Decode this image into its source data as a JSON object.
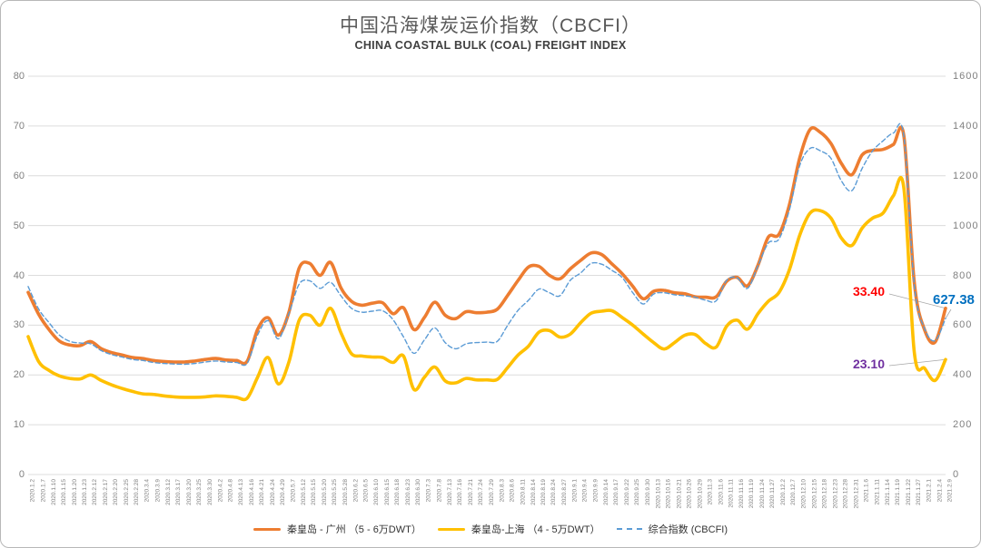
{
  "title": "中国沿海煤炭运价指数（CBCFI）",
  "subtitle": "CHINA COASTAL BULK (COAL) FREIGHT INDEX",
  "annotations": {
    "qg_last": "33.40",
    "qs_last": "23.10",
    "cbcfi_last": "627.38",
    "qg_color": "#FF0000",
    "qs_color": "#7030A0",
    "cbcfi_color": "#0070C0"
  },
  "colors": {
    "qg_line": "#ED7D31",
    "qs_line": "#FFC000",
    "cbcfi_line": "#5B9BD5",
    "grid": "#DCDCDC",
    "tick_text": "#7F7F7F",
    "leader": "#A6A6A6"
  },
  "chart_data": {
    "type": "line",
    "title": "中国沿海煤炭运价指数（CBCFI）",
    "subtitle": "CHINA COASTAL BULK (COAL) FREIGHT INDEX",
    "grid": "horizontal-only",
    "legend_position": "bottom",
    "left_axis": {
      "min": 0,
      "max": 80,
      "step": 10
    },
    "right_axis": {
      "min": 0,
      "max": 1600,
      "step": 200
    },
    "x": [
      "2020.1.2",
      "2020.1.7",
      "2020.1.10",
      "2020.1.15",
      "2020.1.20",
      "2020.1.23",
      "2020.2.12",
      "2020.2.17",
      "2020.2.20",
      "2020.2.25",
      "2020.2.28",
      "2020.3.4",
      "2020.3.9",
      "2020.3.12",
      "2020.3.17",
      "2020.3.20",
      "2020.3.25",
      "2020.3.30",
      "2020.4.2",
      "2020.4.8",
      "2020.4.13",
      "2020.4.16",
      "2020.4.21",
      "2020.4.24",
      "2020.4.29",
      "2020.5.7",
      "2020.5.12",
      "2020.5.15",
      "2020.5.20",
      "2020.5.25",
      "2020.5.28",
      "2020.6.2",
      "2020.6.5",
      "2020.6.10",
      "2020.6.15",
      "2020.6.18",
      "2020.6.23",
      "2020.6.30",
      "2020.7.3",
      "2020.7.8",
      "2020.7.13",
      "2020.7.16",
      "2020.7.21",
      "2020.7.24",
      "2020.7.29",
      "2020.8.3",
      "2020.8.6",
      "2020.8.11",
      "2020.8.14",
      "2020.8.19",
      "2020.8.24",
      "2020.8.27",
      "2020.9.1",
      "2020.9.4",
      "2020.9.9",
      "2020.9.14",
      "2020.9.17",
      "2020.9.22",
      "2020.9.25",
      "2020.9.30",
      "2020.10.13",
      "2020.10.16",
      "2020.10.21",
      "2020.10.26",
      "2020.10.29",
      "2020.11.3",
      "2020.11.6",
      "2020.11.11",
      "2020.11.16",
      "2020.11.19",
      "2020.11.24",
      "2020.11.27",
      "2020.12.2",
      "2020.12.7",
      "2020.12.10",
      "2020.12.15",
      "2020.12.18",
      "2020.12.23",
      "2020.12.28",
      "2020.12.31",
      "2021.1.6",
      "2021.1.11",
      "2021.1.14",
      "2021.1.19",
      "2021.1.22",
      "2021.1.27",
      "2021.2.1",
      "2021.2.4",
      "2021.2.9"
    ],
    "series": [
      {
        "name": "秦皇岛 - 广州 （5 - 6万DWT）",
        "axis": "left",
        "style": "solid",
        "color": "#ED7D31",
        "last_label": "33.40",
        "values": [
          36.6,
          32.2,
          29.1,
          26.8,
          26.0,
          25.9,
          26.7,
          25.3,
          24.5,
          24.0,
          23.5,
          23.3,
          22.9,
          22.7,
          22.6,
          22.6,
          22.8,
          23.1,
          23.3,
          23.0,
          22.9,
          22.7,
          29.1,
          31.5,
          28.0,
          32.5,
          41.5,
          42.4,
          40.0,
          42.6,
          37.5,
          34.8,
          34.0,
          34.4,
          34.5,
          32.3,
          33.5,
          29.1,
          31.5,
          34.6,
          32.0,
          31.3,
          32.7,
          32.5,
          32.6,
          33.2,
          36.0,
          39.0,
          41.7,
          41.8,
          40.0,
          39.3,
          41.3,
          43.0,
          44.5,
          44.2,
          42.3,
          40.3,
          37.8,
          35.3,
          36.8,
          37.0,
          36.5,
          36.3,
          35.7,
          35.6,
          35.7,
          38.8,
          39.6,
          37.9,
          42.0,
          47.7,
          48.2,
          54.0,
          63.5,
          69.3,
          68.7,
          66.5,
          62.5,
          60.2,
          64.2,
          65.1,
          65.3,
          66.3,
          68.0,
          38.5,
          29.0,
          26.6,
          33.4
        ]
      },
      {
        "name": "秦皇岛-上海 （4 - 5万DWT）",
        "axis": "left",
        "style": "solid",
        "color": "#FFC000",
        "last_label": "23.10",
        "values": [
          27.7,
          22.7,
          20.9,
          19.8,
          19.3,
          19.2,
          20.0,
          18.9,
          18.0,
          17.3,
          16.7,
          16.2,
          16.1,
          15.8,
          15.6,
          15.5,
          15.5,
          15.6,
          15.8,
          15.7,
          15.5,
          15.3,
          19.5,
          23.5,
          18.2,
          22.5,
          31.0,
          32.0,
          30.0,
          33.4,
          28.5,
          24.3,
          23.8,
          23.6,
          23.5,
          22.5,
          23.8,
          17.1,
          19.5,
          21.6,
          18.8,
          18.4,
          19.3,
          19.0,
          19.0,
          19.1,
          21.5,
          24.0,
          25.8,
          28.6,
          28.9,
          27.6,
          28.2,
          30.5,
          32.4,
          32.8,
          32.9,
          31.5,
          30.0,
          28.2,
          26.5,
          25.2,
          26.5,
          28.0,
          28.1,
          26.3,
          25.6,
          29.8,
          31.0,
          29.2,
          32.3,
          34.8,
          36.5,
          41.0,
          48.0,
          52.5,
          53.0,
          51.5,
          47.5,
          46.0,
          49.5,
          51.5,
          52.5,
          56.0,
          57.5,
          24.5,
          21.3,
          18.9,
          23.1
        ]
      },
      {
        "name": "综合指数 (CBCFI)",
        "axis": "right",
        "style": "dashed",
        "color": "#5B9BD5",
        "last_label": "627.38",
        "values": [
          755,
          665,
          610,
          560,
          535,
          528,
          525,
          498,
          482,
          472,
          462,
          458,
          450,
          446,
          444,
          443,
          446,
          452,
          456,
          452,
          450,
          446,
          560,
          618,
          545,
          645,
          765,
          778,
          748,
          772,
          718,
          668,
          652,
          656,
          658,
          622,
          553,
          487,
          540,
          589,
          530,
          505,
          525,
          530,
          532,
          535,
          600,
          660,
          700,
          745,
          730,
          718,
          780,
          810,
          848,
          845,
          820,
          790,
          730,
          685,
          725,
          730,
          722,
          718,
          712,
          700,
          698,
          780,
          790,
          748,
          838,
          930,
          945,
          1060,
          1240,
          1310,
          1300,
          1270,
          1180,
          1140,
          1230,
          1300,
          1340,
          1372,
          1360,
          760,
          585,
          538,
          627.38
        ]
      }
    ]
  }
}
